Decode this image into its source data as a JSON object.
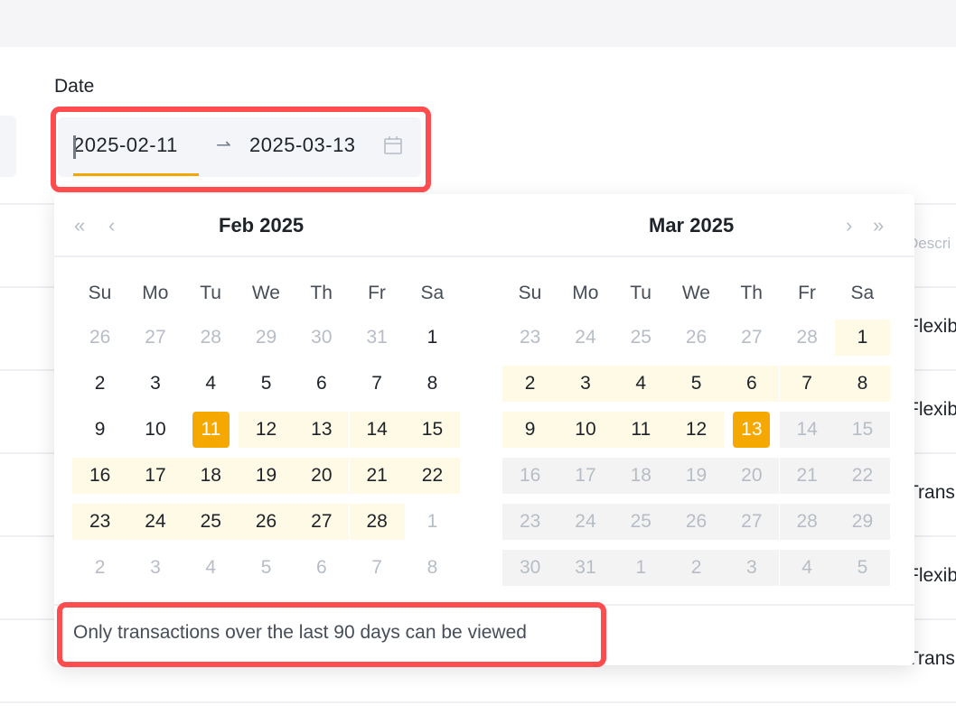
{
  "filter": {
    "label": "Date",
    "start": "2025-02-11",
    "end": "2025-03-13",
    "separator": "⇀"
  },
  "background_table": {
    "header": "Descri",
    "rows": [
      "Flexib",
      "Flexib",
      "Trans",
      "Flexib",
      "Trans"
    ]
  },
  "calendar": {
    "weekdays": [
      "Su",
      "Mo",
      "Tu",
      "We",
      "Th",
      "Fr",
      "Sa"
    ],
    "colors": {
      "selected": "#f5a800",
      "range": "#fefae6",
      "disabled": "#f3f3f3"
    },
    "months": [
      {
        "title": "Feb  2025",
        "rows": [
          [
            [
              26,
              "other"
            ],
            [
              27,
              "other"
            ],
            [
              28,
              "other"
            ],
            [
              29,
              "other"
            ],
            [
              30,
              "other"
            ],
            [
              31,
              "other"
            ],
            [
              1,
              "normal"
            ]
          ],
          [
            [
              2,
              "normal"
            ],
            [
              3,
              "normal"
            ],
            [
              4,
              "normal"
            ],
            [
              5,
              "normal"
            ],
            [
              6,
              "normal"
            ],
            [
              7,
              "normal"
            ],
            [
              8,
              "normal"
            ]
          ],
          [
            [
              9,
              "normal"
            ],
            [
              10,
              "normal"
            ],
            [
              11,
              "sel"
            ],
            [
              12,
              "range"
            ],
            [
              13,
              "range"
            ],
            [
              14,
              "range"
            ],
            [
              15,
              "range"
            ]
          ],
          [
            [
              16,
              "range"
            ],
            [
              17,
              "range"
            ],
            [
              18,
              "range"
            ],
            [
              19,
              "range"
            ],
            [
              20,
              "range"
            ],
            [
              21,
              "range"
            ],
            [
              22,
              "range"
            ]
          ],
          [
            [
              23,
              "range"
            ],
            [
              24,
              "range"
            ],
            [
              25,
              "range"
            ],
            [
              26,
              "range"
            ],
            [
              27,
              "range"
            ],
            [
              28,
              "range"
            ],
            [
              1,
              "other"
            ]
          ],
          [
            [
              2,
              "other"
            ],
            [
              3,
              "other"
            ],
            [
              4,
              "other"
            ],
            [
              5,
              "other"
            ],
            [
              6,
              "other"
            ],
            [
              7,
              "other"
            ],
            [
              8,
              "other"
            ]
          ]
        ]
      },
      {
        "title": "Mar  2025",
        "rows": [
          [
            [
              23,
              "other"
            ],
            [
              24,
              "other"
            ],
            [
              25,
              "other"
            ],
            [
              26,
              "other"
            ],
            [
              27,
              "other"
            ],
            [
              28,
              "other"
            ],
            [
              1,
              "range"
            ]
          ],
          [
            [
              2,
              "range"
            ],
            [
              3,
              "range"
            ],
            [
              4,
              "range"
            ],
            [
              5,
              "range"
            ],
            [
              6,
              "range"
            ],
            [
              7,
              "range"
            ],
            [
              8,
              "range"
            ]
          ],
          [
            [
              9,
              "range"
            ],
            [
              10,
              "range"
            ],
            [
              11,
              "range"
            ],
            [
              12,
              "range"
            ],
            [
              13,
              "sel"
            ],
            [
              14,
              "disabled"
            ],
            [
              15,
              "disabled"
            ]
          ],
          [
            [
              16,
              "disabled"
            ],
            [
              17,
              "disabled"
            ],
            [
              18,
              "disabled"
            ],
            [
              19,
              "disabled"
            ],
            [
              20,
              "disabled"
            ],
            [
              21,
              "disabled"
            ],
            [
              22,
              "disabled"
            ]
          ],
          [
            [
              23,
              "disabled"
            ],
            [
              24,
              "disabled"
            ],
            [
              25,
              "disabled"
            ],
            [
              26,
              "disabled"
            ],
            [
              27,
              "disabled"
            ],
            [
              28,
              "disabled"
            ],
            [
              29,
              "disabled"
            ]
          ],
          [
            [
              30,
              "disabled"
            ],
            [
              31,
              "disabled"
            ],
            [
              1,
              "disabled"
            ],
            [
              2,
              "disabled"
            ],
            [
              3,
              "disabled"
            ],
            [
              4,
              "disabled"
            ],
            [
              5,
              "disabled"
            ]
          ]
        ]
      }
    ],
    "nav": {
      "prev_year": "«",
      "prev_month": "‹",
      "next_month": "›",
      "next_year": "»"
    },
    "footer": "Only transactions over the last 90 days can be viewed"
  }
}
